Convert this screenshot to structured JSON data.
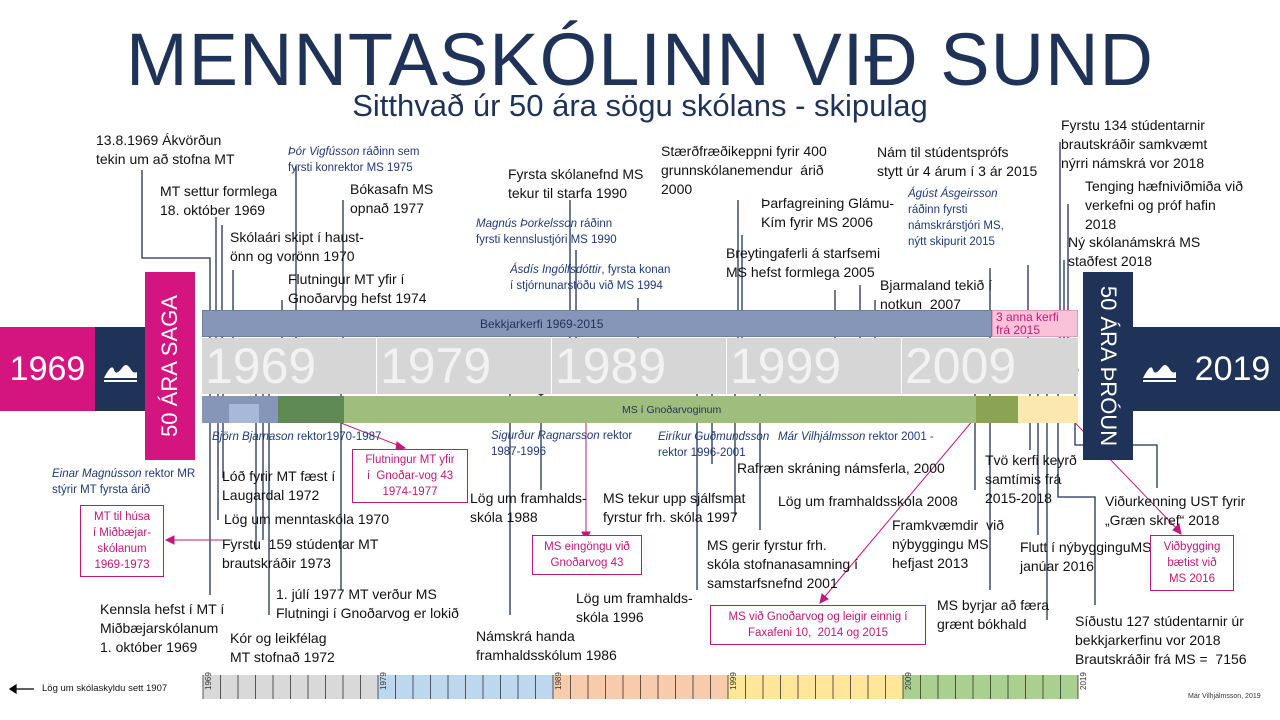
{
  "title": "MENNTASKÓLINN VIÐ SUND",
  "subtitle": "Sitthvað úr 50 ára sögu skólans - skipulag",
  "left_year": "1969",
  "right_year": "2019",
  "left_banner": "50 ÁRA SAGA",
  "right_banner": "50 ÁRA ÞRÓUN",
  "decade_years": [
    "1969",
    "1979",
    "1989",
    "1999",
    "2009"
  ],
  "bands": {
    "bekkjarkerfi": "Bekkjarkerfi 1969-2015",
    "three_years": "3 anna kerfi\nfrá 2015",
    "gnodarvogur": "MS í Gnoðarvoginum"
  },
  "events": {
    "e1": "13.8.1969 Ákvörðun\ntekin um að stofna MT",
    "e2": "MT settur formlega\n18. október 1969",
    "e3": "Skólaári skipt í haust-\nönn og vorönn 1970",
    "e4": "Flutningur MT yfir í\nGnoðarvog hefst 1974",
    "e5": "Bókasafn MS\nopnað 1977",
    "e6": "Fyrsta skólanefnd MS\ntekur til starfa 1990",
    "e7": "Stærðfræðikeppni fyrir 400\ngrunnskólanemendur  árið\n2000",
    "e8": "Þarfagreining Glámu-\nKím fyrir MS 2006",
    "e9": "Breytingaferli á starfsemi\nMS hefst formlega 2005",
    "e10": "Nám til stúdentsprófs\nstytt úr 4 árum í 3 ár 2015",
    "e11": "Bjarmaland tekið í\nnotkun  2007",
    "e12": "Fyrstu 134 stúdentarnir\nbrautskráðir samkvæmt\nnýrri námskrá vor 2018",
    "e13": "Tenging hæfniviðmiða við\nverkefni og próf hafin\n2018",
    "e14": "Ný skólanámskrá MS\nstaðfest 2018",
    "e15": "Lóð fyrir MT fæst í\nLaugardal 1972",
    "e16": "Lög um menntaskóla 1970",
    "e17": "Fyrstu  159 stúdentar MT\nbrautskráðir 1973",
    "e18": "1. júlí 1977 MT verður MS\nFlutningi í Gnoðarvog er lokið",
    "e19": "Kennsla hefst í MT í\nMiðbæjarskólanum\n1. október 1969",
    "e20": "Kór og leikfélag\nMT stofnað 1972",
    "e21": "Lög um framhalds-\nskóla 1988",
    "e22": "MS tekur upp sjálfsmat\nfyrstur frh. skóla 1997",
    "e23": "Rafræn skráning námsferla, 2000",
    "e24": "Lög um framhaldsskóla 2008",
    "e25": "Tvö kerfi keyrð\nsamtímis frá\n2015-2018",
    "e26": "Viðurkenning UST fyrir\n„Græn skref“ 2018",
    "e27": "MS gerir fyrstur frh.\nskóla stofnanasamning í\nsamstarfsnefnd 2001",
    "e28": "Framkvæmdir  við\nnýbyggingu MS\nhefjast 2013",
    "e29": "Flutt í nýbygginguMS\njanúar 2016",
    "e30": "Lög um framhalds-\nskóla 1996",
    "e31": "Námskrá handa\nframhaldsskólum 1986",
    "e32": "MS byrjar að færa\ngrænt bókhald",
    "e33": "Síðustu 127 stúdentarnir úr\nbekkjarkerfinu vor 2018\nBrautskráðir frá MS =  7156"
  },
  "people": {
    "p1_name": "Þór Vigfússon",
    "p1_rest": " ráðinn sem\nfyrsti konrektor MS 1975",
    "p2_name": "Magnús Þorkelsson",
    "p2_rest": " ráðinn\nfyrsti kennslustjóri MS 1990",
    "p3_name": "Ásdís Ingólfsdóttir",
    "p3_rest": ", fyrsta konan\ní stjórnunarstöðu við MS 1994",
    "p4_name": "Ágúst Ásgeirsson",
    "p4_rest": "\nráðinn fyrsti\nnámskrárstjóri MS,\nnýtt skipurit 2015",
    "p5_name": "Björn Bjarnason",
    "p5_rest": " rektor1970-1987",
    "p6_name": "Einar Magnússon",
    "p6_rest": " rektor MR\nstýrir MT fyrsta árið",
    "p7_name": "Sigurður Ragnarsson",
    "p7_rest": " rektor\n1987-1996",
    "p8_name": "Eiríkur Guðmundsson",
    "p8_rest": "\nrektor 1996-2001",
    "p9_name": "Már Vilhjálmsson",
    "p9_rest": " rektor 2001 -"
  },
  "callouts": {
    "c1": "Flutningur MT yfir\ní  Gnoðar-vog 43\n1974-1977",
    "c2": "MT til húsa\ní Miðbæjar-\nskólanum\n1969-1973",
    "c3": "MS eingöngu við\nGnoðarvog 43",
    "c4": "MS við Gnoðarvog og leigir einnig í\nFaxafeni 10,  2014 og 2015",
    "c5": "Viðbygging\nbætist við\nMS 2016"
  },
  "footer": {
    "law": "Lög um skólaskyldu sett 1907",
    "author": "Már Vilhjálmsson, 2019",
    "tick_labels": [
      "1969",
      "1979",
      "1989",
      "1999",
      "2009",
      "2019"
    ]
  },
  "colors": {
    "navy": "#1f3258",
    "magenta": "#d4147f",
    "band_blue": "#8596b8",
    "band_green": "#9fbe7e",
    "band_dark_green": "#5f8a55",
    "timeline_grey": "#d6d6d6",
    "callout": "#c2187a",
    "people": "#1f3a7a"
  },
  "icons": [
    "swan-logo-icon",
    "swan-logo-icon"
  ]
}
